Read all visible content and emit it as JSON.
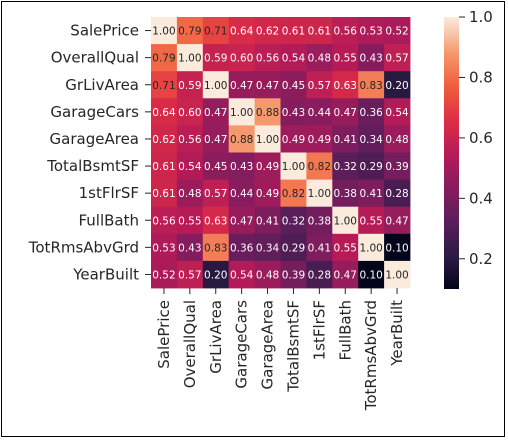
{
  "chart_data": {
    "type": "heatmap",
    "title": "",
    "xlabel": "",
    "ylabel": "",
    "labels": [
      "SalePrice",
      "OverallQual",
      "GrLivArea",
      "GarageCars",
      "GarageArea",
      "TotalBsmtSF",
      "1stFlrSF",
      "FullBath",
      "TotRmsAbvGrd",
      "YearBuilt"
    ],
    "matrix": [
      [
        1.0,
        0.79,
        0.71,
        0.64,
        0.62,
        0.61,
        0.61,
        0.56,
        0.53,
        0.52
      ],
      [
        0.79,
        1.0,
        0.59,
        0.6,
        0.56,
        0.54,
        0.48,
        0.55,
        0.43,
        0.57
      ],
      [
        0.71,
        0.59,
        1.0,
        0.47,
        0.47,
        0.45,
        0.57,
        0.63,
        0.83,
        0.2
      ],
      [
        0.64,
        0.6,
        0.47,
        1.0,
        0.88,
        0.43,
        0.44,
        0.47,
        0.36,
        0.54
      ],
      [
        0.62,
        0.56,
        0.47,
        0.88,
        1.0,
        0.49,
        0.49,
        0.41,
        0.34,
        0.48
      ],
      [
        0.61,
        0.54,
        0.45,
        0.43,
        0.49,
        1.0,
        0.82,
        0.32,
        0.29,
        0.39
      ],
      [
        0.61,
        0.48,
        0.57,
        0.44,
        0.49,
        0.82,
        1.0,
        0.38,
        0.41,
        0.28
      ],
      [
        0.56,
        0.55,
        0.63,
        0.47,
        0.41,
        0.32,
        0.38,
        1.0,
        0.55,
        0.47
      ],
      [
        0.53,
        0.43,
        0.83,
        0.36,
        0.34,
        0.29,
        0.41,
        0.55,
        1.0,
        0.1
      ],
      [
        0.52,
        0.57,
        0.2,
        0.54,
        0.48,
        0.39,
        0.28,
        0.47,
        0.1,
        1.0
      ]
    ],
    "value_format": "2 decimals",
    "vmin": 0.1,
    "vmax": 1.0,
    "colormap": "rocket",
    "colorbar_ticks": [
      "0.2",
      "0.4",
      "0.6",
      "0.8",
      "1.0"
    ],
    "colorbar_tick_values": [
      0.2,
      0.4,
      0.6,
      0.8,
      1.0
    ],
    "annotations": true,
    "grid": false,
    "legend": "colorbar-right"
  }
}
